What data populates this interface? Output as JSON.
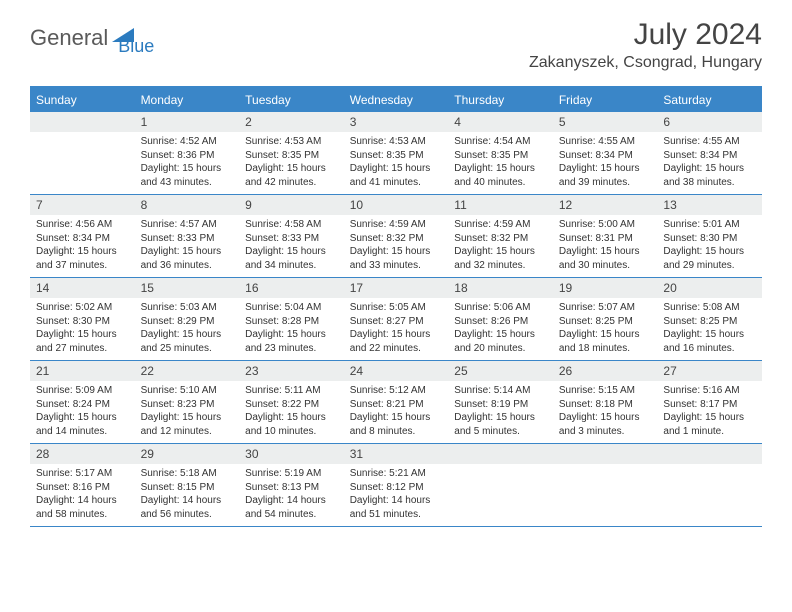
{
  "logo": {
    "text1": "General",
    "text2": "Blue"
  },
  "title": "July 2024",
  "location": "Zakanyszek, Csongrad, Hungary",
  "colors": {
    "header_bg": "#3a86c8",
    "header_text": "#ffffff",
    "daynum_bg": "#eceeee",
    "body_text": "#333333",
    "logo_gray": "#5a5a5a",
    "logo_blue": "#2b7bbf"
  },
  "weekdays": [
    "Sunday",
    "Monday",
    "Tuesday",
    "Wednesday",
    "Thursday",
    "Friday",
    "Saturday"
  ],
  "weeks": [
    [
      {
        "empty": true
      },
      {
        "n": "1",
        "sr": "Sunrise: 4:52 AM",
        "ss": "Sunset: 8:36 PM",
        "d1": "Daylight: 15 hours",
        "d2": "and 43 minutes."
      },
      {
        "n": "2",
        "sr": "Sunrise: 4:53 AM",
        "ss": "Sunset: 8:35 PM",
        "d1": "Daylight: 15 hours",
        "d2": "and 42 minutes."
      },
      {
        "n": "3",
        "sr": "Sunrise: 4:53 AM",
        "ss": "Sunset: 8:35 PM",
        "d1": "Daylight: 15 hours",
        "d2": "and 41 minutes."
      },
      {
        "n": "4",
        "sr": "Sunrise: 4:54 AM",
        "ss": "Sunset: 8:35 PM",
        "d1": "Daylight: 15 hours",
        "d2": "and 40 minutes."
      },
      {
        "n": "5",
        "sr": "Sunrise: 4:55 AM",
        "ss": "Sunset: 8:34 PM",
        "d1": "Daylight: 15 hours",
        "d2": "and 39 minutes."
      },
      {
        "n": "6",
        "sr": "Sunrise: 4:55 AM",
        "ss": "Sunset: 8:34 PM",
        "d1": "Daylight: 15 hours",
        "d2": "and 38 minutes."
      }
    ],
    [
      {
        "n": "7",
        "sr": "Sunrise: 4:56 AM",
        "ss": "Sunset: 8:34 PM",
        "d1": "Daylight: 15 hours",
        "d2": "and 37 minutes."
      },
      {
        "n": "8",
        "sr": "Sunrise: 4:57 AM",
        "ss": "Sunset: 8:33 PM",
        "d1": "Daylight: 15 hours",
        "d2": "and 36 minutes."
      },
      {
        "n": "9",
        "sr": "Sunrise: 4:58 AM",
        "ss": "Sunset: 8:33 PM",
        "d1": "Daylight: 15 hours",
        "d2": "and 34 minutes."
      },
      {
        "n": "10",
        "sr": "Sunrise: 4:59 AM",
        "ss": "Sunset: 8:32 PM",
        "d1": "Daylight: 15 hours",
        "d2": "and 33 minutes."
      },
      {
        "n": "11",
        "sr": "Sunrise: 4:59 AM",
        "ss": "Sunset: 8:32 PM",
        "d1": "Daylight: 15 hours",
        "d2": "and 32 minutes."
      },
      {
        "n": "12",
        "sr": "Sunrise: 5:00 AM",
        "ss": "Sunset: 8:31 PM",
        "d1": "Daylight: 15 hours",
        "d2": "and 30 minutes."
      },
      {
        "n": "13",
        "sr": "Sunrise: 5:01 AM",
        "ss": "Sunset: 8:30 PM",
        "d1": "Daylight: 15 hours",
        "d2": "and 29 minutes."
      }
    ],
    [
      {
        "n": "14",
        "sr": "Sunrise: 5:02 AM",
        "ss": "Sunset: 8:30 PM",
        "d1": "Daylight: 15 hours",
        "d2": "and 27 minutes."
      },
      {
        "n": "15",
        "sr": "Sunrise: 5:03 AM",
        "ss": "Sunset: 8:29 PM",
        "d1": "Daylight: 15 hours",
        "d2": "and 25 minutes."
      },
      {
        "n": "16",
        "sr": "Sunrise: 5:04 AM",
        "ss": "Sunset: 8:28 PM",
        "d1": "Daylight: 15 hours",
        "d2": "and 23 minutes."
      },
      {
        "n": "17",
        "sr": "Sunrise: 5:05 AM",
        "ss": "Sunset: 8:27 PM",
        "d1": "Daylight: 15 hours",
        "d2": "and 22 minutes."
      },
      {
        "n": "18",
        "sr": "Sunrise: 5:06 AM",
        "ss": "Sunset: 8:26 PM",
        "d1": "Daylight: 15 hours",
        "d2": "and 20 minutes."
      },
      {
        "n": "19",
        "sr": "Sunrise: 5:07 AM",
        "ss": "Sunset: 8:25 PM",
        "d1": "Daylight: 15 hours",
        "d2": "and 18 minutes."
      },
      {
        "n": "20",
        "sr": "Sunrise: 5:08 AM",
        "ss": "Sunset: 8:25 PM",
        "d1": "Daylight: 15 hours",
        "d2": "and 16 minutes."
      }
    ],
    [
      {
        "n": "21",
        "sr": "Sunrise: 5:09 AM",
        "ss": "Sunset: 8:24 PM",
        "d1": "Daylight: 15 hours",
        "d2": "and 14 minutes."
      },
      {
        "n": "22",
        "sr": "Sunrise: 5:10 AM",
        "ss": "Sunset: 8:23 PM",
        "d1": "Daylight: 15 hours",
        "d2": "and 12 minutes."
      },
      {
        "n": "23",
        "sr": "Sunrise: 5:11 AM",
        "ss": "Sunset: 8:22 PM",
        "d1": "Daylight: 15 hours",
        "d2": "and 10 minutes."
      },
      {
        "n": "24",
        "sr": "Sunrise: 5:12 AM",
        "ss": "Sunset: 8:21 PM",
        "d1": "Daylight: 15 hours",
        "d2": "and 8 minutes."
      },
      {
        "n": "25",
        "sr": "Sunrise: 5:14 AM",
        "ss": "Sunset: 8:19 PM",
        "d1": "Daylight: 15 hours",
        "d2": "and 5 minutes."
      },
      {
        "n": "26",
        "sr": "Sunrise: 5:15 AM",
        "ss": "Sunset: 8:18 PM",
        "d1": "Daylight: 15 hours",
        "d2": "and 3 minutes."
      },
      {
        "n": "27",
        "sr": "Sunrise: 5:16 AM",
        "ss": "Sunset: 8:17 PM",
        "d1": "Daylight: 15 hours",
        "d2": "and 1 minute."
      }
    ],
    [
      {
        "n": "28",
        "sr": "Sunrise: 5:17 AM",
        "ss": "Sunset: 8:16 PM",
        "d1": "Daylight: 14 hours",
        "d2": "and 58 minutes."
      },
      {
        "n": "29",
        "sr": "Sunrise: 5:18 AM",
        "ss": "Sunset: 8:15 PM",
        "d1": "Daylight: 14 hours",
        "d2": "and 56 minutes."
      },
      {
        "n": "30",
        "sr": "Sunrise: 5:19 AM",
        "ss": "Sunset: 8:13 PM",
        "d1": "Daylight: 14 hours",
        "d2": "and 54 minutes."
      },
      {
        "n": "31",
        "sr": "Sunrise: 5:21 AM",
        "ss": "Sunset: 8:12 PM",
        "d1": "Daylight: 14 hours",
        "d2": "and 51 minutes."
      },
      {
        "empty": true
      },
      {
        "empty": true
      },
      {
        "empty": true
      }
    ]
  ]
}
